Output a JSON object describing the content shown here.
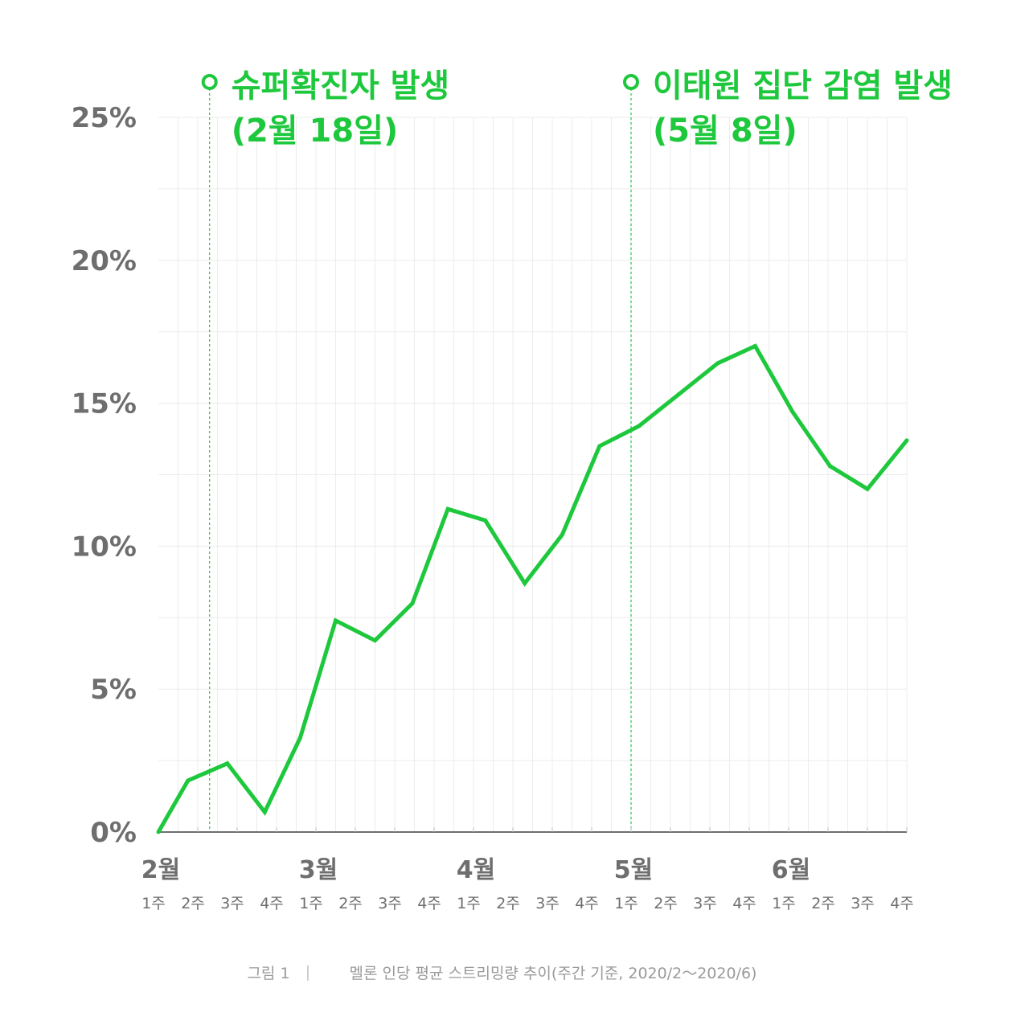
{
  "chart_data": {
    "type": "line",
    "title": "",
    "xlabel": "",
    "ylabel": "",
    "ylim": [
      0,
      25
    ],
    "yticks": [
      "0%",
      "5%",
      "10%",
      "15%",
      "20%",
      "25%"
    ],
    "months": [
      "2월",
      "3월",
      "4월",
      "5월",
      "6월"
    ],
    "weeks": [
      "1주",
      "2주",
      "3주",
      "4주",
      "1주",
      "2주",
      "3주",
      "4주",
      "1주",
      "2주",
      "3주",
      "4주",
      "1주",
      "2주",
      "3주",
      "4주",
      "1주",
      "2주",
      "3주",
      "4주"
    ],
    "grid": true,
    "series": [
      {
        "x": [
          0,
          0.75,
          1.75,
          2.7,
          3.6,
          4.5,
          5.5,
          6.45,
          7.35,
          8.3,
          9.3,
          10.25,
          11.2,
          12.2,
          13.2,
          14.2,
          15.15,
          16.1,
          17.05,
          18,
          19
        ],
        "values": [
          0,
          1.8,
          2.4,
          0.7,
          3.3,
          7.4,
          6.7,
          8.0,
          11.3,
          10.9,
          8.7,
          10.4,
          13.5,
          14.2,
          15.3,
          16.4,
          17.0,
          14.7,
          12.8,
          12.0,
          13.7
        ]
      }
    ],
    "annotations": [
      {
        "x": 1.3,
        "line1": "슈퍼확진자 발생",
        "line2": "(2월 18일)"
      },
      {
        "x": 12.0,
        "line1": "이태원 집단 감염 발생",
        "line2": "(5월 8일)"
      }
    ],
    "colors": {
      "line": "#1ec83c",
      "axis": "#6e6e6e",
      "grid": "#ececec"
    }
  },
  "caption": {
    "label": "그림 1",
    "separator": "|",
    "text": "멜론 인당 평균 스트리밍량 추이(주간 기준, 2020/2～2020/6)"
  }
}
